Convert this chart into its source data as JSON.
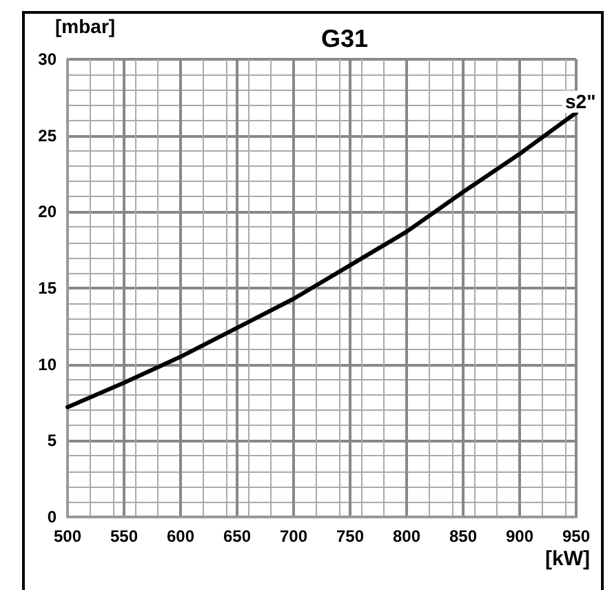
{
  "chart_data": {
    "type": "line",
    "title": "G31",
    "xlabel": "[kW]",
    "ylabel": "[mbar]",
    "x": [
      500,
      550,
      600,
      650,
      700,
      750,
      800,
      850,
      900,
      950
    ],
    "series": [
      {
        "name": "s2\"",
        "color": "#000000",
        "values": [
          7.2,
          8.8,
          10.5,
          12.4,
          14.3,
          16.5,
          18.7,
          21.3,
          23.8,
          26.5
        ]
      }
    ],
    "xlim": [
      500,
      950
    ],
    "xticks": [
      500,
      550,
      600,
      650,
      700,
      750,
      800,
      850,
      900,
      950
    ],
    "ylim": [
      0,
      30
    ],
    "yticks": [
      0,
      5,
      10,
      15,
      20,
      25,
      30
    ],
    "grid": true,
    "legend": false,
    "marker": "none",
    "line_style": "solid"
  }
}
